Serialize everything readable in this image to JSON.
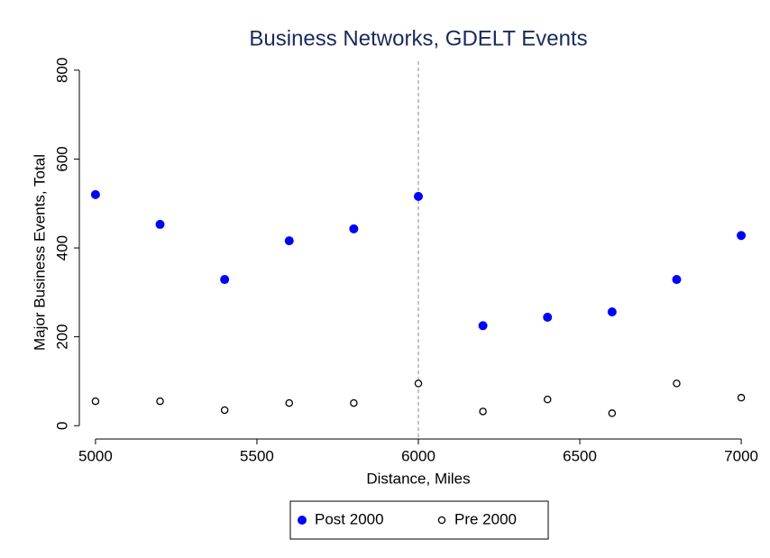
{
  "chart_data": {
    "type": "scatter",
    "title": "Business Networks, GDELT Events",
    "x_label": "Distance, Miles",
    "y_label": "Major Business Events, Total",
    "x": [
      5000,
      5200,
      5400,
      5600,
      5800,
      6000,
      6200,
      6400,
      6600,
      6800,
      7000
    ],
    "series": [
      {
        "name": "Post 2000",
        "color": "#0000ff",
        "marker": "filled",
        "values": [
          520,
          453,
          329,
          416,
          443,
          516,
          225,
          244,
          256,
          329,
          428
        ]
      },
      {
        "name": "Pre 2000",
        "color": "#000000",
        "marker": "hollow",
        "values": [
          55,
          55,
          35,
          51,
          51,
          95,
          32,
          59,
          28,
          95,
          63
        ]
      }
    ],
    "xlim": [
      4950,
      7050
    ],
    "ylim": [
      -30,
      820
    ],
    "xticks": [
      5000,
      5500,
      6000,
      6500,
      7000
    ],
    "yticks": [
      0,
      200,
      400,
      600,
      800
    ],
    "vline": 6000,
    "grid": false,
    "legend": "bottom"
  }
}
